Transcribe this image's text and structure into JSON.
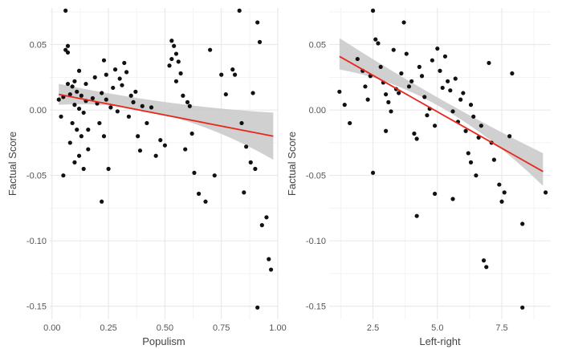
{
  "colors": {
    "points": "#111111",
    "fit_line": "#e8281c",
    "ci_band": "#c8c8c8",
    "grid_major": "#e6e6e6",
    "grid_minor": "#f3f3f3",
    "axis_text": "#555555",
    "axis_title": "#444444"
  },
  "chart_data": [
    {
      "type": "scatter",
      "xlabel": "Populism",
      "ylabel": "Factual Score",
      "xlim": [
        -0.01,
        1.0
      ],
      "ylim": [
        -0.16,
        0.078
      ],
      "x_ticks": [
        0.0,
        0.25,
        0.5,
        0.75,
        1.0
      ],
      "x_tick_labels": [
        "0.00",
        "0.25",
        "0.50",
        "0.75",
        "1.00"
      ],
      "y_ticks": [
        0.05,
        0.0,
        -0.05,
        -0.1,
        -0.15
      ],
      "y_tick_labels": [
        "0.05",
        "0.00",
        "-0.05",
        "-0.10",
        "-0.15"
      ],
      "grid": true,
      "fit": {
        "type": "linear",
        "x_range": [
          0.03,
          0.98
        ],
        "y_start": 0.012,
        "y_end": -0.02,
        "band_start": [
          0.004,
          0.02
        ],
        "band_end": [
          -0.038,
          -0.002
        ],
        "band_mid": [
          -0.004,
          0.006
        ]
      },
      "points": [
        [
          0.06,
          0.076
        ],
        [
          0.07,
          0.049
        ],
        [
          0.06,
          0.046
        ],
        [
          0.07,
          0.044
        ],
        [
          0.03,
          0.008
        ],
        [
          0.04,
          -0.005
        ],
        [
          0.05,
          0.01
        ],
        [
          0.08,
          0.012
        ],
        [
          0.1,
          0.022
        ],
        [
          0.12,
          0.03
        ],
        [
          0.07,
          0.02
        ],
        [
          0.09,
          0.018
        ],
        [
          0.11,
          0.014
        ],
        [
          0.13,
          0.011
        ],
        [
          0.15,
          0.007
        ],
        [
          0.1,
          0.004
        ],
        [
          0.12,
          0.001
        ],
        [
          0.14,
          -0.002
        ],
        [
          0.09,
          -0.01
        ],
        [
          0.11,
          -0.015
        ],
        [
          0.13,
          -0.02
        ],
        [
          0.08,
          -0.025
        ],
        [
          0.12,
          -0.035
        ],
        [
          0.14,
          -0.045
        ],
        [
          0.1,
          -0.04
        ],
        [
          0.16,
          -0.03
        ],
        [
          0.05,
          -0.05
        ],
        [
          0.15,
          0.02
        ],
        [
          0.16,
          -0.015
        ],
        [
          0.18,
          0.009
        ],
        [
          0.2,
          0.005
        ],
        [
          0.19,
          0.025
        ],
        [
          0.21,
          -0.01
        ],
        [
          0.22,
          0.013
        ],
        [
          0.23,
          0.038
        ],
        [
          0.24,
          0.027
        ],
        [
          0.23,
          -0.02
        ],
        [
          0.25,
          -0.045
        ],
        [
          0.22,
          -0.07
        ],
        [
          0.24,
          0.008
        ],
        [
          0.26,
          0.002
        ],
        [
          0.27,
          0.017
        ],
        [
          0.28,
          0.031
        ],
        [
          0.29,
          -0.001
        ],
        [
          0.3,
          0.024
        ],
        [
          0.31,
          0.019
        ],
        [
          0.32,
          0.036
        ],
        [
          0.33,
          0.029
        ],
        [
          0.34,
          -0.005
        ],
        [
          0.35,
          0.011
        ],
        [
          0.36,
          0.006
        ],
        [
          0.37,
          0.014
        ],
        [
          0.38,
          -0.02
        ],
        [
          0.39,
          -0.031
        ],
        [
          0.4,
          0.003
        ],
        [
          0.42,
          -0.01
        ],
        [
          0.44,
          0.002
        ],
        [
          0.46,
          -0.035
        ],
        [
          0.48,
          -0.023
        ],
        [
          0.5,
          -0.027
        ],
        [
          0.52,
          0.034
        ],
        [
          0.53,
          0.053
        ],
        [
          0.54,
          0.049
        ],
        [
          0.55,
          0.043
        ],
        [
          0.53,
          0.039
        ],
        [
          0.56,
          0.037
        ],
        [
          0.57,
          0.028
        ],
        [
          0.55,
          0.022
        ],
        [
          0.58,
          0.011
        ],
        [
          0.6,
          0.006
        ],
        [
          0.62,
          -0.018
        ],
        [
          0.61,
          0.003
        ],
        [
          0.59,
          -0.03
        ],
        [
          0.63,
          -0.048
        ],
        [
          0.65,
          -0.064
        ],
        [
          0.68,
          -0.07
        ],
        [
          0.7,
          0.046
        ],
        [
          0.72,
          -0.05
        ],
        [
          0.75,
          0.027
        ],
        [
          0.77,
          0.012
        ],
        [
          0.8,
          0.031
        ],
        [
          0.81,
          0.027
        ],
        [
          0.83,
          0.076
        ],
        [
          0.84,
          -0.01
        ],
        [
          0.85,
          -0.063
        ],
        [
          0.86,
          -0.028
        ],
        [
          0.88,
          -0.04
        ],
        [
          0.89,
          0.013
        ],
        [
          0.9,
          -0.045
        ],
        [
          0.91,
          0.067
        ],
        [
          0.92,
          0.052
        ],
        [
          0.93,
          -0.088
        ],
        [
          0.95,
          -0.082
        ],
        [
          0.96,
          -0.114
        ],
        [
          0.97,
          -0.122
        ],
        [
          0.91,
          -0.151
        ]
      ]
    },
    {
      "type": "scatter",
      "xlabel": "Left-right",
      "ylabel": "Factual Score",
      "xlim": [
        0.8,
        9.4
      ],
      "ylim": [
        -0.16,
        0.078
      ],
      "x_ticks": [
        2.5,
        5.0,
        7.5
      ],
      "x_tick_labels": [
        "2.5",
        "5.0",
        "7.5"
      ],
      "y_ticks": [
        0.05,
        0.0,
        -0.05,
        -0.1,
        -0.15
      ],
      "y_tick_labels": [
        "0.05",
        "0.00",
        "-0.05",
        "-0.10",
        "-0.15"
      ],
      "grid": true,
      "fit": {
        "type": "linear",
        "x_range": [
          1.2,
          9.1
        ],
        "y_start": 0.041,
        "y_end": -0.047,
        "band_start": [
          0.031,
          0.055
        ],
        "band_end": [
          -0.058,
          -0.033
        ],
        "band_mid": [
          0.002,
          0.008
        ]
      },
      "points": [
        [
          1.2,
          0.014
        ],
        [
          1.4,
          0.004
        ],
        [
          1.6,
          -0.01
        ],
        [
          1.9,
          0.039
        ],
        [
          2.1,
          0.03
        ],
        [
          2.2,
          0.018
        ],
        [
          2.3,
          0.008
        ],
        [
          2.4,
          0.026
        ],
        [
          2.5,
          0.076
        ],
        [
          2.6,
          0.054
        ],
        [
          2.7,
          0.051
        ],
        [
          2.8,
          0.033
        ],
        [
          2.9,
          0.021
        ],
        [
          3.0,
          0.012
        ],
        [
          3.1,
          0.006
        ],
        [
          3.2,
          -0.001
        ],
        [
          3.3,
          0.046
        ],
        [
          3.4,
          0.016
        ],
        [
          3.5,
          0.013
        ],
        [
          3.6,
          0.028
        ],
        [
          3.7,
          0.067
        ],
        [
          3.8,
          0.043
        ],
        [
          3.9,
          0.018
        ],
        [
          4.0,
          0.022
        ],
        [
          4.1,
          -0.018
        ],
        [
          4.2,
          -0.022
        ],
        [
          4.3,
          0.033
        ],
        [
          4.4,
          0.026
        ],
        [
          4.5,
          0.01
        ],
        [
          4.6,
          -0.004
        ],
        [
          4.7,
          0.001
        ],
        [
          4.8,
          0.038
        ],
        [
          4.9,
          -0.012
        ],
        [
          5.0,
          0.047
        ],
        [
          5.1,
          0.03
        ],
        [
          5.2,
          0.017
        ],
        [
          5.3,
          0.041
        ],
        [
          5.4,
          0.022
        ],
        [
          5.5,
          0.015
        ],
        [
          5.6,
          -0.001
        ],
        [
          5.7,
          0.024
        ],
        [
          5.8,
          -0.009
        ],
        [
          5.9,
          0.008
        ],
        [
          6.0,
          0.013
        ],
        [
          6.1,
          -0.016
        ],
        [
          6.2,
          -0.033
        ],
        [
          6.3,
          -0.04
        ],
        [
          6.4,
          -0.005
        ],
        [
          6.5,
          -0.05
        ],
        [
          6.6,
          -0.021
        ],
        [
          6.7,
          -0.012
        ],
        [
          6.8,
          -0.115
        ],
        [
          6.9,
          -0.12
        ],
        [
          7.0,
          0.036
        ],
        [
          7.1,
          -0.025
        ],
        [
          7.2,
          -0.038
        ],
        [
          7.4,
          -0.057
        ],
        [
          7.5,
          -0.07
        ],
        [
          7.6,
          -0.063
        ],
        [
          7.9,
          0.028
        ],
        [
          8.3,
          -0.087
        ],
        [
          8.3,
          -0.151
        ],
        [
          9.2,
          -0.063
        ],
        [
          4.2,
          -0.081
        ],
        [
          2.5,
          -0.048
        ],
        [
          3.0,
          -0.016
        ],
        [
          5.6,
          -0.068
        ],
        [
          4.9,
          -0.064
        ],
        [
          6.3,
          0.004
        ],
        [
          7.8,
          -0.02
        ]
      ]
    }
  ]
}
